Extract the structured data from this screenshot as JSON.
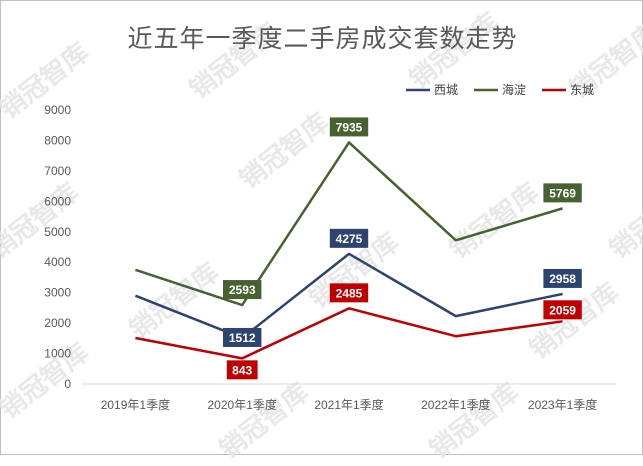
{
  "chart_data": {
    "type": "line",
    "title": "近五年一季度二手房成交套数走势",
    "categories": [
      "2019年1季度",
      "2020年1季度",
      "2021年1季度",
      "2022年1季度",
      "2023年1季度"
    ],
    "ylim": [
      0,
      9000
    ],
    "yticks": [
      0,
      1000,
      2000,
      3000,
      4000,
      5000,
      6000,
      7000,
      8000,
      9000
    ],
    "grid": false,
    "legend_position": "top-right",
    "series": [
      {
        "name": "西城",
        "color": "#2e4470",
        "values": [
          2900,
          1512,
          4275,
          2230,
          2958
        ],
        "labeled": [
          false,
          true,
          true,
          false,
          true
        ]
      },
      {
        "name": "海淀",
        "color": "#466231",
        "values": [
          3750,
          2593,
          7935,
          4720,
          5769
        ],
        "labeled": [
          false,
          true,
          true,
          false,
          true
        ]
      },
      {
        "name": "东城",
        "color": "#c00000",
        "values": [
          1510,
          843,
          2485,
          1570,
          2059
        ],
        "labeled": [
          false,
          true,
          true,
          false,
          true
        ]
      }
    ]
  },
  "watermark": "销冠智库"
}
